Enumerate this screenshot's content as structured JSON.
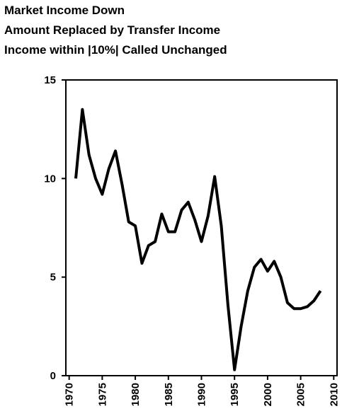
{
  "chart_data": {
    "type": "line",
    "title_lines": [
      "Market Income Down",
      "Amount Replaced by Transfer Income",
      "Income within |10%| Called Unchanged"
    ],
    "x": [
      1971,
      1972,
      1973,
      1974,
      1975,
      1976,
      1977,
      1978,
      1979,
      1980,
      1981,
      1982,
      1983,
      1984,
      1985,
      1986,
      1987,
      1988,
      1989,
      1990,
      1991,
      1992,
      1993,
      1994,
      1995,
      1996,
      1997,
      1998,
      1999,
      2000,
      2001,
      2002,
      2003,
      2004,
      2005,
      2006,
      2007,
      2008
    ],
    "series": [
      {
        "color": "#000000",
        "values": [
          10.0,
          13.5,
          11.2,
          10.0,
          9.2,
          10.5,
          11.4,
          9.7,
          7.8,
          7.6,
          5.7,
          6.6,
          6.8,
          8.2,
          7.3,
          7.3,
          8.4,
          8.8,
          7.9,
          6.8,
          8.1,
          10.1,
          7.6,
          3.6,
          0.3,
          2.5,
          4.3,
          5.5,
          5.9,
          5.3,
          5.8,
          5.0,
          3.7,
          3.4,
          3.4,
          3.5,
          3.8,
          4.3
        ]
      }
    ],
    "xlim": [
      1969.5,
      2010.5
    ],
    "xticks": [
      1970,
      1975,
      1980,
      1985,
      1990,
      1995,
      2000,
      2005,
      2010
    ],
    "ylim": [
      0,
      15
    ],
    "yticks": [
      0,
      5,
      10,
      15
    ]
  }
}
